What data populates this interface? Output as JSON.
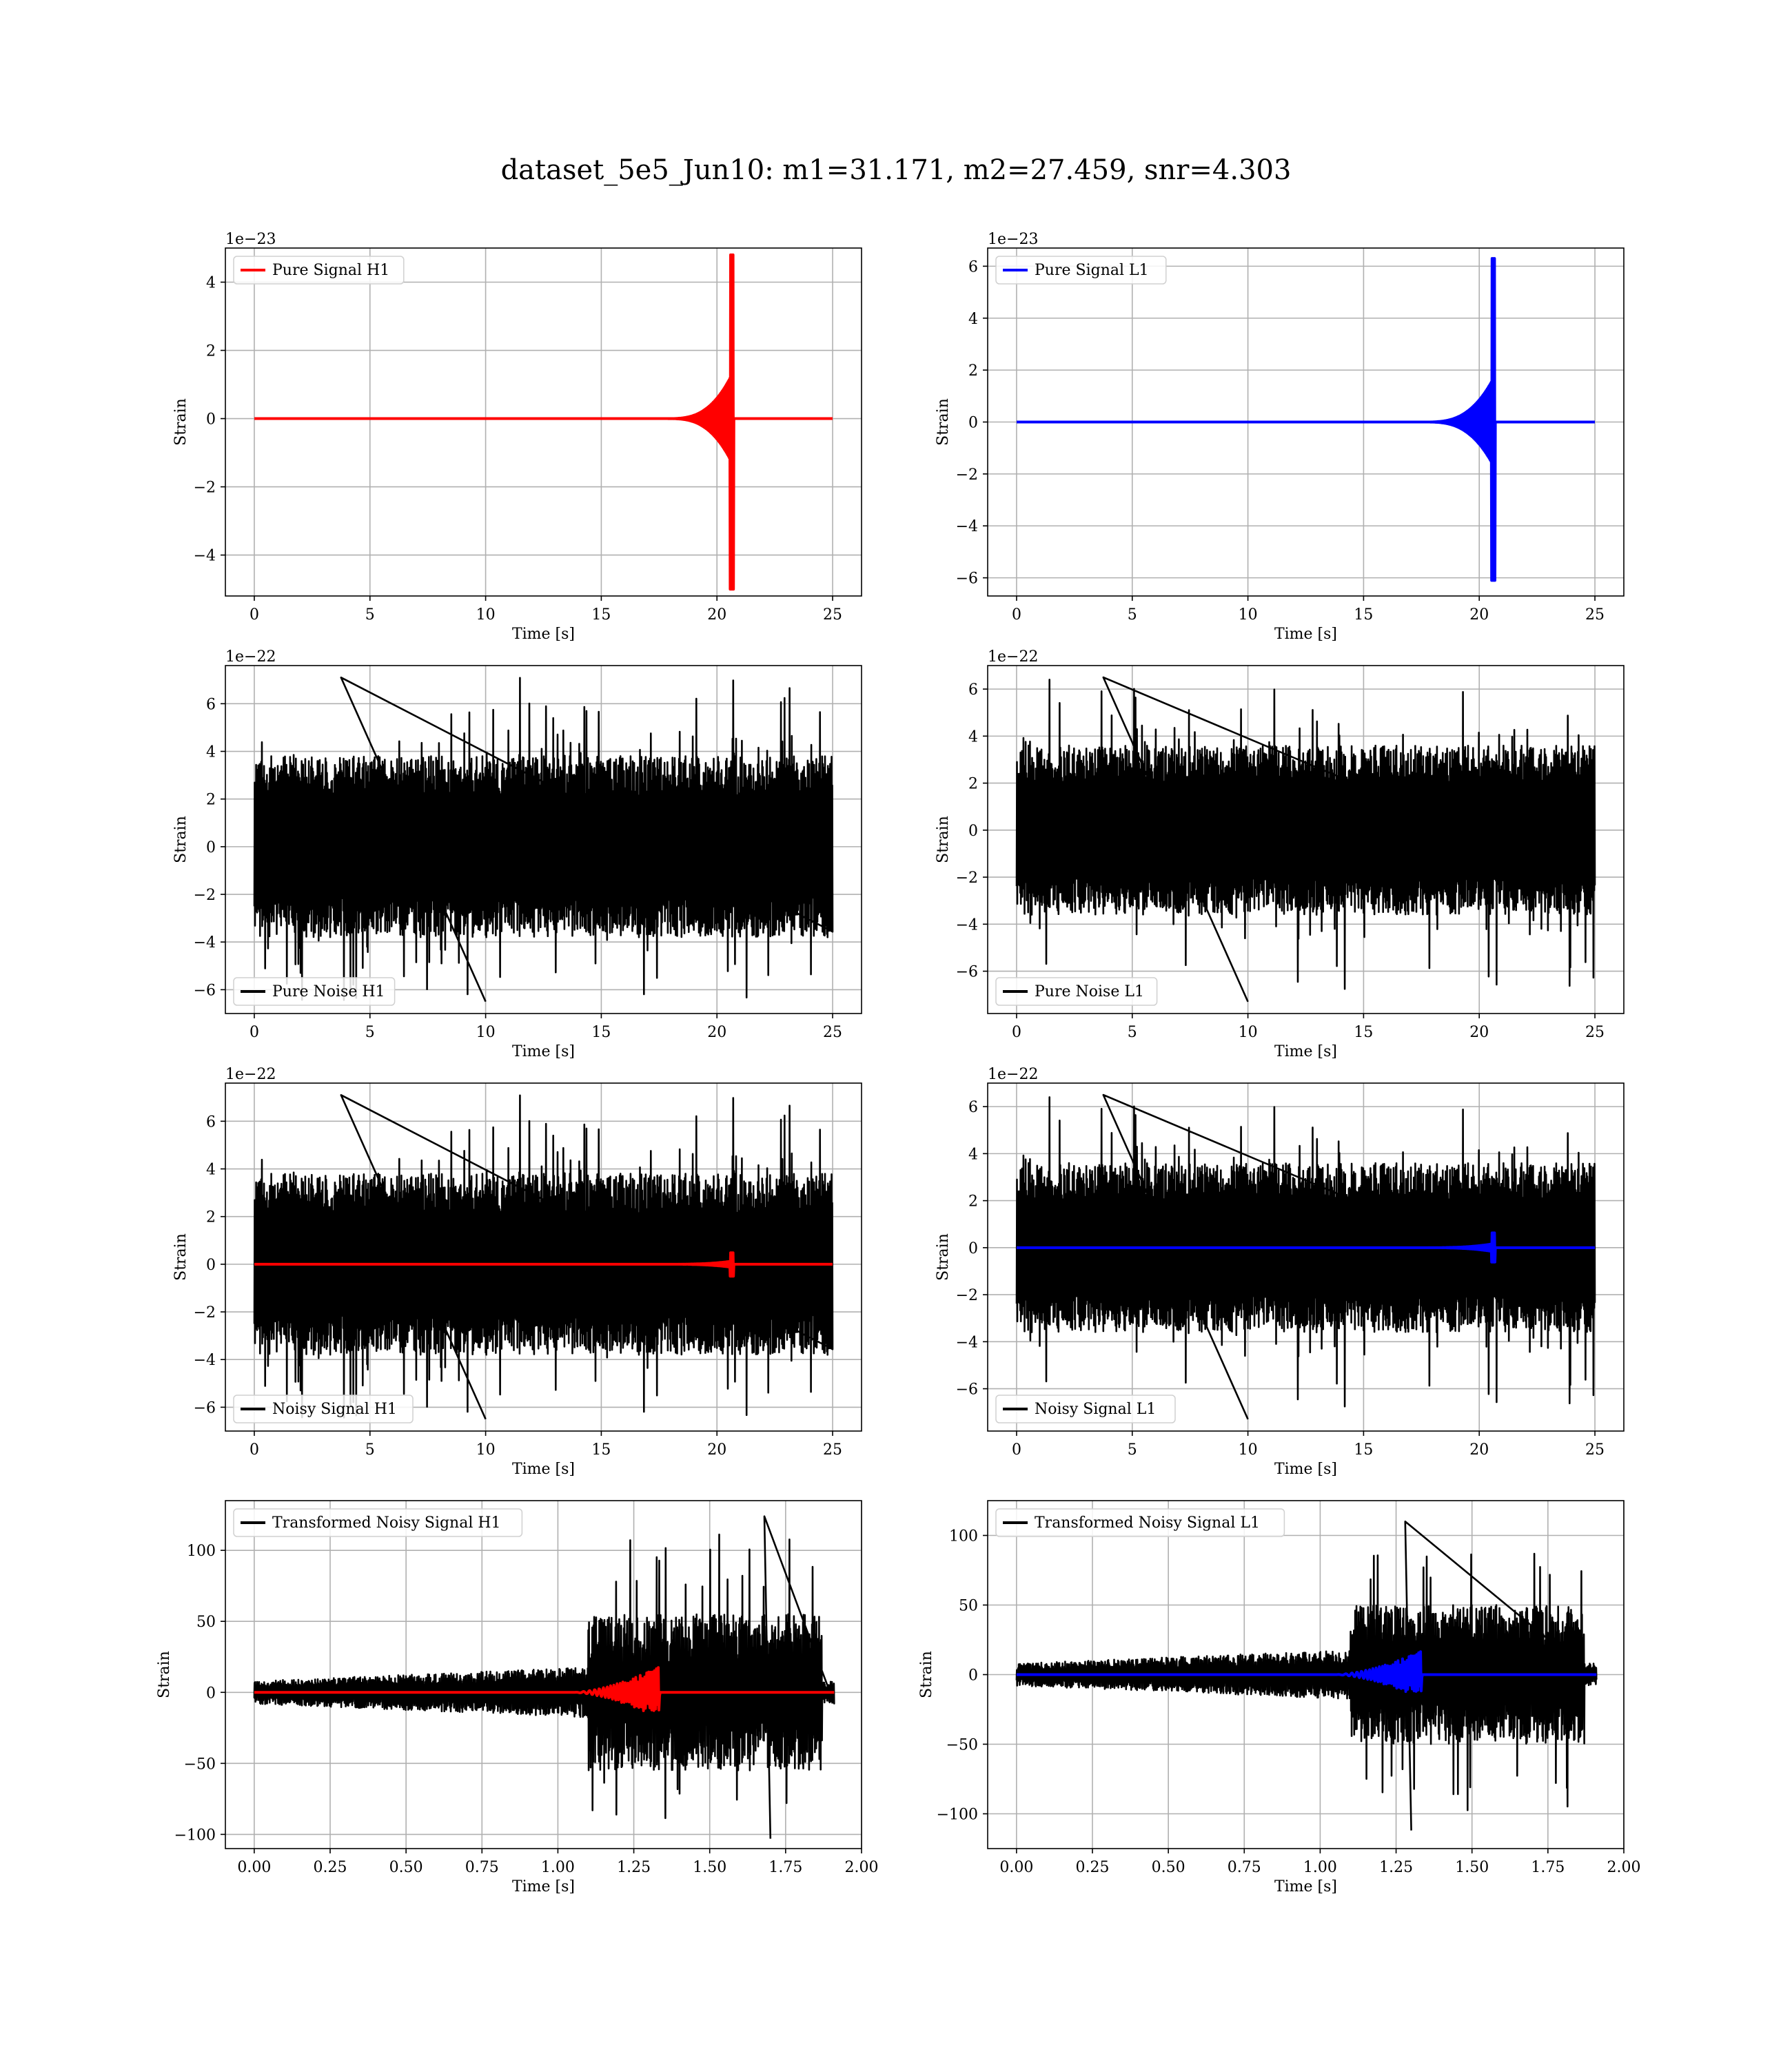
{
  "figure_title": "dataset_5e5_Jun10: m1=31.171, m2=27.459, snr=4.303",
  "colors": {
    "h1": "#ff0000",
    "l1": "#0000ff",
    "noise": "#000000",
    "grid": "#b0b0b0"
  },
  "chart_data": [
    {
      "id": "pure-signal-h1",
      "type": "line",
      "xlabel": "Time [s]",
      "ylabel": "Strain",
      "offset_text": "1e−23",
      "xlim": [
        -1.25,
        26.25
      ],
      "ylim": [
        -5.2,
        5.0
      ],
      "xticks": [
        0,
        5,
        10,
        15,
        20,
        25
      ],
      "xticklabels": [
        "0",
        "5",
        "10",
        "15",
        "20",
        "25"
      ],
      "yticks": [
        -4,
        -2,
        0,
        2,
        4
      ],
      "yticklabels": [
        "−4",
        "−2",
        "0",
        "2",
        "4"
      ],
      "legend": "upper left",
      "grid": true,
      "series": [
        {
          "name": "Pure Signal H1",
          "color": "#ff0000",
          "kind": "chirp",
          "x_start": 0,
          "x_end": 25,
          "merger": 20.72,
          "amplitude": 1.4,
          "peak_pos": 4.8,
          "peak_neg": -5.0,
          "onset": 17.8
        }
      ]
    },
    {
      "id": "pure-signal-l1",
      "type": "line",
      "xlabel": "Time [s]",
      "ylabel": "Strain",
      "offset_text": "1e−23",
      "xlim": [
        -1.25,
        26.25
      ],
      "ylim": [
        -6.7,
        6.7
      ],
      "xticks": [
        0,
        5,
        10,
        15,
        20,
        25
      ],
      "xticklabels": [
        "0",
        "5",
        "10",
        "15",
        "20",
        "25"
      ],
      "yticks": [
        -6,
        -4,
        -2,
        0,
        2,
        4,
        6
      ],
      "yticklabels": [
        "−6",
        "−4",
        "−2",
        "0",
        "2",
        "4",
        "6"
      ],
      "legend": "upper left",
      "grid": true,
      "series": [
        {
          "name": "Pure Signal L1",
          "color": "#0000ff",
          "kind": "chirp",
          "x_start": 0,
          "x_end": 25,
          "merger": 20.68,
          "amplitude": 1.8,
          "peak_pos": 6.3,
          "peak_neg": -6.1,
          "onset": 17.6
        }
      ]
    },
    {
      "id": "pure-noise-h1",
      "type": "line",
      "xlabel": "Time [s]",
      "ylabel": "Strain",
      "offset_text": "1e−22",
      "xlim": [
        -1.25,
        26.25
      ],
      "ylim": [
        -7.0,
        7.6
      ],
      "xticks": [
        0,
        5,
        10,
        15,
        20,
        25
      ],
      "xticklabels": [
        "0",
        "5",
        "10",
        "15",
        "20",
        "25"
      ],
      "yticks": [
        -6,
        -4,
        -2,
        0,
        2,
        4,
        6
      ],
      "yticklabels": [
        "−6",
        "−4",
        "−2",
        "0",
        "2",
        "4",
        "6"
      ],
      "legend": "lower left",
      "grid": true,
      "series": [
        {
          "name": "Pure Noise H1",
          "color": "#000000",
          "kind": "noise",
          "x_start": 0,
          "x_end": 25,
          "band": 3.8,
          "max": 7.1,
          "min": -6.5,
          "seed": 11
        }
      ]
    },
    {
      "id": "pure-noise-l1",
      "type": "line",
      "xlabel": "Time [s]",
      "ylabel": "Strain",
      "offset_text": "1e−22",
      "xlim": [
        -1.25,
        26.25
      ],
      "ylim": [
        -7.8,
        7.0
      ],
      "xticks": [
        0,
        5,
        10,
        15,
        20,
        25
      ],
      "xticklabels": [
        "0",
        "5",
        "10",
        "15",
        "20",
        "25"
      ],
      "yticks": [
        -6,
        -4,
        -2,
        0,
        2,
        4,
        6
      ],
      "yticklabels": [
        "−6",
        "−4",
        "−2",
        "0",
        "2",
        "4",
        "6"
      ],
      "legend": "lower left",
      "grid": true,
      "series": [
        {
          "name": "Pure Noise L1",
          "color": "#000000",
          "kind": "noise",
          "x_start": 0,
          "x_end": 25,
          "band": 3.6,
          "max": 6.5,
          "min": -7.3,
          "seed": 23
        }
      ]
    },
    {
      "id": "noisy-signal-h1",
      "type": "line",
      "xlabel": "Time [s]",
      "ylabel": "Strain",
      "offset_text": "1e−22",
      "xlim": [
        -1.25,
        26.25
      ],
      "ylim": [
        -7.0,
        7.6
      ],
      "xticks": [
        0,
        5,
        10,
        15,
        20,
        25
      ],
      "xticklabels": [
        "0",
        "5",
        "10",
        "15",
        "20",
        "25"
      ],
      "yticks": [
        -6,
        -4,
        -2,
        0,
        2,
        4,
        6
      ],
      "yticklabels": [
        "−6",
        "−4",
        "−2",
        "0",
        "2",
        "4",
        "6"
      ],
      "legend": "lower left",
      "grid": true,
      "series": [
        {
          "name": "Noisy Signal H1",
          "color": "#000000",
          "kind": "noise",
          "x_start": 0,
          "x_end": 25,
          "band": 3.8,
          "max": 7.1,
          "min": -6.5,
          "seed": 11
        },
        {
          "name": "",
          "color": "#ff0000",
          "kind": "chirp",
          "x_start": 0,
          "x_end": 25,
          "merger": 20.72,
          "amplitude": 0.14,
          "peak_pos": 0.48,
          "peak_neg": -0.5,
          "onset": 17.8
        }
      ]
    },
    {
      "id": "noisy-signal-l1",
      "type": "line",
      "xlabel": "Time [s]",
      "ylabel": "Strain",
      "offset_text": "1e−22",
      "xlim": [
        -1.25,
        26.25
      ],
      "ylim": [
        -7.8,
        7.0
      ],
      "xticks": [
        0,
        5,
        10,
        15,
        20,
        25
      ],
      "xticklabels": [
        "0",
        "5",
        "10",
        "15",
        "20",
        "25"
      ],
      "yticks": [
        -6,
        -4,
        -2,
        0,
        2,
        4,
        6
      ],
      "yticklabels": [
        "−6",
        "−4",
        "−2",
        "0",
        "2",
        "4",
        "6"
      ],
      "legend": "lower left",
      "grid": true,
      "series": [
        {
          "name": "Noisy Signal L1",
          "color": "#000000",
          "kind": "noise",
          "x_start": 0,
          "x_end": 25,
          "band": 3.6,
          "max": 6.5,
          "min": -7.3,
          "seed": 23
        },
        {
          "name": "",
          "color": "#0000ff",
          "kind": "chirp",
          "x_start": 0,
          "x_end": 25,
          "merger": 20.68,
          "amplitude": 0.18,
          "peak_pos": 0.63,
          "peak_neg": -0.61,
          "onset": 17.6
        }
      ]
    },
    {
      "id": "transformed-noisy-signal-h1",
      "type": "line",
      "xlabel": "Time [s]",
      "ylabel": "Strain",
      "offset_text": "",
      "xlim": [
        -0.095,
        2.0
      ],
      "ylim": [
        -110,
        135
      ],
      "xticks": [
        0,
        0.25,
        0.5,
        0.75,
        1.0,
        1.25,
        1.5,
        1.75,
        2.0
      ],
      "xticklabels": [
        "0.00",
        "0.25",
        "0.50",
        "0.75",
        "1.00",
        "1.25",
        "1.50",
        "1.75",
        "2.00"
      ],
      "yticks": [
        -100,
        -50,
        0,
        50,
        100
      ],
      "yticklabels": [
        "−100",
        "−50",
        "0",
        "50",
        "100"
      ],
      "legend": "upper left",
      "grid": true,
      "series": [
        {
          "name": "Transformed Noisy Signal H1",
          "color": "#000000",
          "kind": "whitened",
          "x_start": 0,
          "x_end": 1.91,
          "seed": 5,
          "jump_at": 1.1,
          "low": 8,
          "high": 55,
          "max": 124,
          "min": -103,
          "spike_x": 1.68,
          "drop_end": 1.87
        },
        {
          "name": "",
          "color": "#ff0000",
          "kind": "whitened_chirp",
          "x_start": 0,
          "x_end": 1.91,
          "merger": 1.335,
          "onset": 1.05,
          "amplitude": 18
        }
      ]
    },
    {
      "id": "transformed-noisy-signal-l1",
      "type": "line",
      "xlabel": "Time [s]",
      "ylabel": "Strain",
      "offset_text": "",
      "xlim": [
        -0.095,
        2.0
      ],
      "ylim": [
        -125,
        125
      ],
      "xticks": [
        0,
        0.25,
        0.5,
        0.75,
        1.0,
        1.25,
        1.5,
        1.75,
        2.0
      ],
      "xticklabels": [
        "0.00",
        "0.25",
        "0.50",
        "0.75",
        "1.00",
        "1.25",
        "1.50",
        "1.75",
        "2.00"
      ],
      "yticks": [
        -100,
        -50,
        0,
        50,
        100
      ],
      "yticklabels": [
        "−100",
        "−50",
        "0",
        "50",
        "100"
      ],
      "legend": "upper left",
      "grid": true,
      "series": [
        {
          "name": "Transformed Noisy Signal L1",
          "color": "#000000",
          "kind": "whitened",
          "x_start": 0,
          "x_end": 1.91,
          "seed": 9,
          "jump_at": 1.1,
          "low": 8,
          "high": 50,
          "max": 110,
          "min": -112,
          "spike_x": 1.28,
          "drop_end": 1.87
        },
        {
          "name": "",
          "color": "#0000ff",
          "kind": "whitened_chirp",
          "x_start": 0,
          "x_end": 1.91,
          "merger": 1.335,
          "onset": 1.05,
          "amplitude": 17
        }
      ]
    }
  ]
}
